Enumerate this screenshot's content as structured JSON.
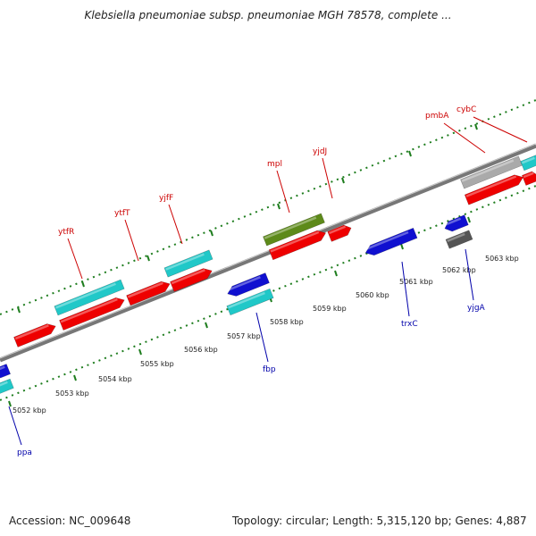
{
  "title": "Klebsiella pneumoniae subsp. pneumoniae MGH 78578, complete ...",
  "footer": {
    "accession": "Accession: NC_009648",
    "topology": "Topology: circular; Length: 5,315,120 bp; Genes: 4,887"
  },
  "colors": {
    "red": "#ee0000",
    "cyan": "#20c8c8",
    "blue": "#1010d0",
    "olive": "#5d8a1a",
    "gray": "#aaaaaa",
    "darkgray": "#555555",
    "backbone": "#777777",
    "tick": "#1e7d1e",
    "label_red": "#cc0000",
    "label_blue": "#0000aa"
  },
  "scale_labels": [
    "5052 kbp",
    "5053 kbp",
    "5054 kbp",
    "5055 kbp",
    "5056 kbp",
    "5057 kbp",
    "5058 kbp",
    "5059 kbp",
    "5060 kbp",
    "5061 kbp",
    "5062 kbp",
    "5063 kbp"
  ],
  "gene_labels": {
    "ytfR": "ytfR",
    "ytfT": "ytfT",
    "yjfF": "yjfF",
    "mpl": "mpl",
    "yjdJ": "yjdJ",
    "pmbA": "pmbA",
    "cybC": "cybC",
    "fbp": "fbp",
    "trxC": "trxC",
    "yjgA": "yjgA",
    "ppa": "ppa"
  }
}
